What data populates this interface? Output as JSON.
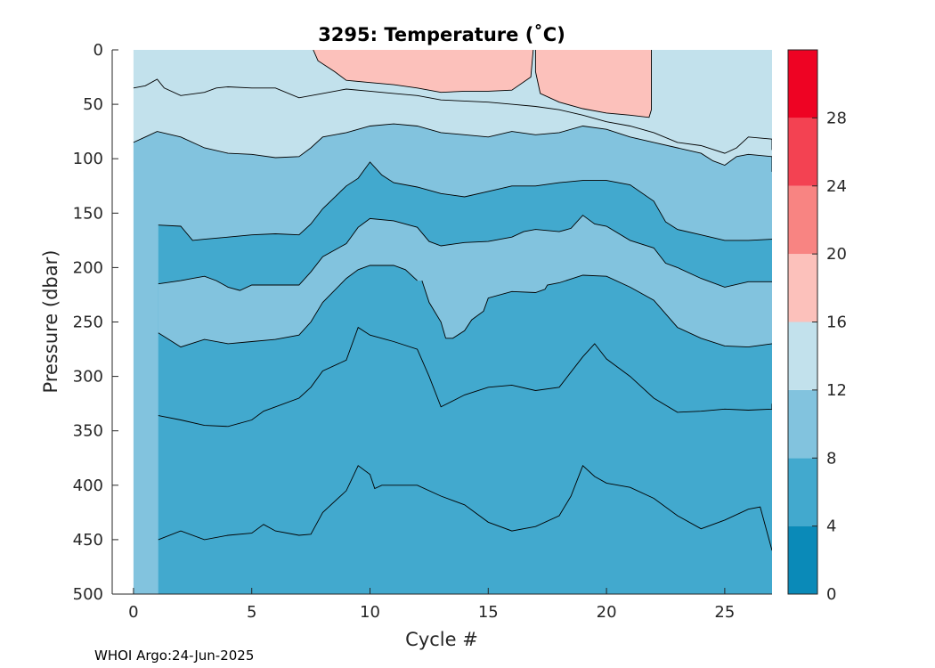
{
  "chart_data": {
    "type": "contour",
    "title": "3295:  Temperature (˚C)",
    "xlabel": "Cycle #",
    "ylabel": "Pressure (dbar)",
    "xlim": [
      -0.9,
      27
    ],
    "ylim": [
      0,
      500
    ],
    "y_reversed": true,
    "x_ticks": [
      0,
      5,
      10,
      15,
      20,
      25
    ],
    "y_ticks": [
      0,
      50,
      100,
      150,
      200,
      250,
      300,
      350,
      400,
      450,
      500
    ],
    "colorbar": {
      "range": [
        0,
        32
      ],
      "ticks": [
        0,
        4,
        8,
        12,
        16,
        20,
        24,
        28
      ],
      "levels": [
        {
          "from": 0,
          "to": 4,
          "color": "#0A8AB8"
        },
        {
          "from": 4,
          "to": 8,
          "color": "#42A9CE"
        },
        {
          "from": 8,
          "to": 12,
          "color": "#82C3DE"
        },
        {
          "from": 12,
          "to": 16,
          "color": "#C2E1EC"
        },
        {
          "from": 16,
          "to": 20,
          "color": "#FCC1BB"
        },
        {
          "from": 20,
          "to": 24,
          "color": "#F88482"
        },
        {
          "from": 24,
          "to": 28,
          "color": "#F34252"
        },
        {
          "from": 28,
          "to": 32,
          "color": "#EE0323"
        }
      ]
    },
    "data_extent": {
      "cycle_start": 0,
      "cycle_end": 27,
      "cycle0_max_pressure": 112,
      "full_depth_from_cycle": 1.05
    },
    "isotherms": [
      {
        "level": 16,
        "points": [
          [
            7.6,
            0
          ],
          [
            7.8,
            10
          ],
          [
            8.5,
            20
          ],
          [
            9,
            28
          ],
          [
            10,
            30
          ],
          [
            11,
            32
          ],
          [
            12,
            35
          ],
          [
            13,
            39
          ],
          [
            14,
            38
          ],
          [
            15,
            38
          ],
          [
            16,
            37
          ],
          [
            16.8,
            25
          ],
          [
            16.9,
            0
          ]
        ]
      },
      {
        "level": 16,
        "points": [
          [
            21.9,
            0
          ],
          [
            21.9,
            55
          ],
          [
            21.8,
            62
          ],
          [
            21,
            60
          ],
          [
            20,
            58
          ],
          [
            19,
            54
          ],
          [
            18,
            48
          ],
          [
            17.2,
            40
          ],
          [
            17,
            20
          ],
          [
            17,
            0
          ]
        ]
      },
      {
        "level": 12,
        "points": [
          [
            0,
            35
          ],
          [
            0.5,
            33
          ],
          [
            1,
            27
          ],
          [
            1.3,
            35
          ],
          [
            2,
            42
          ],
          [
            3,
            39
          ],
          [
            3.5,
            35
          ],
          [
            4,
            34
          ],
          [
            5,
            35
          ],
          [
            6,
            35
          ],
          [
            7,
            44
          ],
          [
            8,
            40
          ],
          [
            9,
            36
          ],
          [
            10,
            38
          ],
          [
            11,
            40
          ],
          [
            12,
            42
          ],
          [
            13,
            46
          ],
          [
            14,
            47
          ],
          [
            15,
            48
          ],
          [
            16,
            50
          ],
          [
            17,
            52
          ],
          [
            18,
            55
          ],
          [
            19,
            60
          ],
          [
            20,
            66
          ],
          [
            21,
            70
          ],
          [
            22,
            76
          ],
          [
            23,
            85
          ],
          [
            24,
            88
          ],
          [
            25,
            95
          ],
          [
            25.5,
            90
          ],
          [
            26,
            80
          ],
          [
            27,
            82
          ],
          [
            27,
            92
          ]
        ]
      },
      {
        "level": 12,
        "points": [
          [
            0,
            85
          ],
          [
            0.5,
            80
          ],
          [
            1,
            75
          ],
          [
            2,
            80
          ],
          [
            3,
            90
          ],
          [
            4,
            95
          ],
          [
            5,
            96
          ],
          [
            6,
            99
          ],
          [
            7,
            98
          ],
          [
            7.5,
            90
          ],
          [
            8,
            80
          ],
          [
            9,
            76
          ],
          [
            10,
            70
          ],
          [
            11,
            68
          ],
          [
            12,
            70
          ],
          [
            13,
            76
          ],
          [
            14,
            78
          ],
          [
            15,
            80
          ],
          [
            16,
            75
          ],
          [
            17,
            78
          ],
          [
            18,
            76
          ],
          [
            19,
            70
          ],
          [
            20,
            73
          ],
          [
            21,
            80
          ],
          [
            22,
            85
          ],
          [
            23,
            90
          ],
          [
            24,
            95
          ],
          [
            24.5,
            102
          ],
          [
            25,
            106
          ],
          [
            25.5,
            98
          ],
          [
            26,
            96
          ],
          [
            27,
            98
          ],
          [
            27,
            112
          ]
        ]
      },
      {
        "level": 8,
        "points": [
          [
            1.05,
            161
          ],
          [
            2,
            162
          ],
          [
            2.5,
            175
          ],
          [
            3,
            174
          ],
          [
            4,
            172
          ],
          [
            5,
            170
          ],
          [
            6,
            169
          ],
          [
            7,
            170
          ],
          [
            7.5,
            160
          ],
          [
            8,
            146
          ],
          [
            9,
            125
          ],
          [
            9.5,
            118
          ],
          [
            10,
            103
          ],
          [
            10.5,
            115
          ],
          [
            11,
            122
          ],
          [
            12,
            126
          ],
          [
            13,
            132
          ],
          [
            14,
            135
          ],
          [
            15,
            130
          ],
          [
            16,
            125
          ],
          [
            17,
            125
          ],
          [
            18,
            122
          ],
          [
            19,
            120
          ],
          [
            20,
            120
          ],
          [
            21,
            124
          ],
          [
            22,
            139
          ],
          [
            22.5,
            158
          ],
          [
            23,
            165
          ],
          [
            24,
            170
          ],
          [
            25,
            175
          ],
          [
            26,
            175
          ],
          [
            27,
            174
          ]
        ]
      },
      {
        "level": 8,
        "points": [
          [
            1.05,
            215
          ],
          [
            2,
            212
          ],
          [
            2.5,
            210
          ],
          [
            3,
            208
          ],
          [
            3.5,
            212
          ],
          [
            4,
            218
          ],
          [
            4.5,
            221
          ],
          [
            5,
            216
          ],
          [
            6,
            216
          ],
          [
            7,
            216
          ],
          [
            7.5,
            204
          ],
          [
            8,
            190
          ],
          [
            9,
            178
          ],
          [
            9.5,
            163
          ],
          [
            10,
            155
          ],
          [
            11,
            157
          ],
          [
            12,
            163
          ],
          [
            12.5,
            176
          ],
          [
            13,
            180
          ],
          [
            14,
            177
          ],
          [
            15,
            176
          ],
          [
            16,
            172
          ],
          [
            16.5,
            167
          ],
          [
            17,
            165
          ],
          [
            18,
            167
          ],
          [
            18.5,
            164
          ],
          [
            19,
            152
          ],
          [
            19.5,
            160
          ],
          [
            20,
            162
          ],
          [
            21,
            175
          ],
          [
            22,
            182
          ],
          [
            22.5,
            196
          ],
          [
            23,
            200
          ],
          [
            24,
            210
          ],
          [
            25,
            218
          ],
          [
            26,
            213
          ],
          [
            27,
            213
          ]
        ]
      },
      {
        "level": 8,
        "points": [
          [
            13.2,
            265
          ],
          [
            13.5,
            265
          ],
          [
            14,
            258
          ],
          [
            14.3,
            248
          ],
          [
            14.8,
            240
          ],
          [
            15,
            228
          ],
          [
            16,
            222
          ],
          [
            17,
            223
          ],
          [
            17.4,
            220
          ],
          [
            17.5,
            216
          ],
          [
            18,
            214
          ],
          [
            19,
            207
          ],
          [
            20,
            208
          ],
          [
            21,
            218
          ],
          [
            22,
            230
          ],
          [
            23,
            255
          ],
          [
            24,
            265
          ],
          [
            25,
            272
          ],
          [
            26,
            273
          ],
          [
            27,
            270
          ]
        ]
      },
      {
        "level": 8,
        "points": [
          [
            12.2,
            212
          ],
          [
            12.5,
            232
          ],
          [
            13,
            250
          ],
          [
            13.2,
            265
          ]
        ]
      },
      {
        "level": 4,
        "points": [
          [
            1.05,
            260
          ],
          [
            2,
            273
          ],
          [
            3,
            266
          ],
          [
            4,
            270
          ],
          [
            5,
            268
          ],
          [
            6,
            266
          ],
          [
            7,
            262
          ],
          [
            7.5,
            250
          ],
          [
            8,
            232
          ],
          [
            9,
            210
          ],
          [
            9.5,
            202
          ],
          [
            10,
            198
          ],
          [
            11,
            198
          ],
          [
            11.5,
            202
          ],
          [
            12,
            212
          ]
        ]
      },
      {
        "level": 4,
        "points": [
          [
            1.05,
            336
          ],
          [
            2,
            340
          ],
          [
            3,
            345
          ],
          [
            4,
            346
          ],
          [
            5,
            340
          ],
          [
            5.5,
            332
          ],
          [
            6,
            328
          ],
          [
            7,
            320
          ],
          [
            7.5,
            310
          ],
          [
            8,
            295
          ],
          [
            9,
            285
          ],
          [
            9.5,
            255
          ],
          [
            10,
            262
          ],
          [
            11,
            268
          ],
          [
            12,
            275
          ],
          [
            12.5,
            300
          ],
          [
            13,
            328
          ],
          [
            14,
            317
          ],
          [
            15,
            310
          ],
          [
            16,
            308
          ],
          [
            17,
            313
          ],
          [
            18,
            310
          ],
          [
            19,
            282
          ],
          [
            19.5,
            270
          ],
          [
            20,
            284
          ],
          [
            21,
            300
          ],
          [
            22,
            320
          ],
          [
            23,
            333
          ],
          [
            24,
            332
          ],
          [
            25,
            330
          ],
          [
            26,
            331
          ],
          [
            27,
            330
          ],
          [
            27,
            325
          ]
        ]
      },
      {
        "level": 4,
        "points": [
          [
            1.05,
            450
          ],
          [
            2,
            442
          ],
          [
            3,
            450
          ],
          [
            4,
            446
          ],
          [
            5,
            444
          ],
          [
            5.5,
            436
          ],
          [
            6,
            442
          ],
          [
            7,
            446
          ],
          [
            7.5,
            445
          ],
          [
            8,
            425
          ],
          [
            9,
            405
          ],
          [
            9.5,
            382
          ],
          [
            10,
            390
          ],
          [
            10.2,
            403
          ],
          [
            10.5,
            400
          ],
          [
            11,
            400
          ],
          [
            12,
            400
          ],
          [
            13,
            410
          ],
          [
            14,
            418
          ],
          [
            15,
            434
          ],
          [
            16,
            442
          ],
          [
            17,
            438
          ],
          [
            18,
            428
          ],
          [
            18.5,
            410
          ],
          [
            19,
            382
          ],
          [
            19.5,
            392
          ],
          [
            20,
            398
          ],
          [
            21,
            402
          ],
          [
            22,
            412
          ],
          [
            23,
            428
          ],
          [
            24,
            440
          ],
          [
            25,
            432
          ],
          [
            26,
            422
          ],
          [
            26.5,
            420
          ],
          [
            27,
            460
          ]
        ]
      }
    ]
  },
  "footer": {
    "text": "WHOI Argo:24-Jun-2025"
  }
}
